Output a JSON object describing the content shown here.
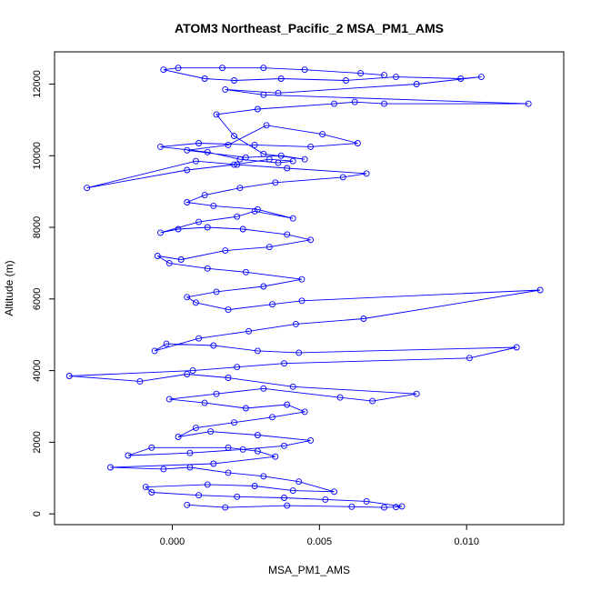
{
  "chart_data": {
    "type": "line",
    "title": "ATOM3 Northeast_Pacific_2 MSA_PM1_AMS",
    "xlabel": "MSA_PM1_AMS",
    "ylabel": "Altitude (m)",
    "xlim": [
      -0.004,
      0.0133
    ],
    "ylim": [
      -300,
      12900
    ],
    "xticks": [
      0.0,
      0.005,
      0.01
    ],
    "xtick_labels": [
      "0.000",
      "0.005",
      "0.010"
    ],
    "yticks": [
      0,
      2000,
      4000,
      6000,
      8000,
      10000,
      12000
    ],
    "ytick_labels": [
      "0",
      "2000",
      "4000",
      "6000",
      "8000",
      "10000",
      "12000"
    ],
    "grid": false,
    "colors": {
      "series": "#0000ff",
      "axis": "#000000"
    },
    "series": [
      {
        "x": [
          0.0005,
          0.0018,
          0.0039,
          0.0061,
          0.0072,
          0.0076,
          0.0078,
          0.0066,
          0.0052,
          0.0038,
          0.0022,
          0.0009,
          -0.0007,
          -0.0009,
          0.0012,
          0.0028,
          0.0041,
          0.0055,
          0.0043,
          0.0031,
          0.0019,
          0.0006,
          -0.0003,
          -0.0021,
          0.0014,
          0.0035,
          0.0029,
          0.0019,
          -0.0007,
          -0.0015,
          0.0006,
          0.0024,
          0.0038,
          0.0047,
          0.0029,
          0.0013,
          0.0002,
          0.0008,
          0.0021,
          0.0034,
          0.0045,
          0.0039,
          0.0025,
          0.0011,
          -0.0001,
          0.0015,
          0.0031,
          0.0057,
          0.0068,
          0.0083,
          0.0041,
          0.0019,
          0.0005,
          -0.0011,
          -0.0035,
          0.0007,
          0.0022,
          0.0038,
          0.0101,
          0.0117,
          0.0043,
          0.0029,
          0.0014,
          -0.0002,
          -0.0006,
          0.0009,
          0.0026,
          0.0042,
          0.0065,
          0.0125,
          0.0044,
          0.0034,
          0.0019,
          0.0008,
          0.0005,
          0.0015,
          0.0031,
          0.0044,
          0.0025,
          0.0012,
          -0.0001,
          -0.0005,
          0.0003,
          0.0018,
          0.0033,
          0.0047,
          0.0039,
          0.0024,
          0.0012,
          0.0002,
          -0.0004,
          0.0009,
          0.0022,
          0.0028,
          0.0041,
          0.0029,
          0.0014,
          0.0005,
          0.0011,
          0.0023,
          0.0035,
          0.0058,
          0.0066,
          0.0039,
          0.0022,
          0.0008,
          -0.0029,
          0.0005,
          0.0021,
          0.0033,
          0.0041,
          0.0036,
          0.0023,
          0.0012,
          -0.0004,
          0.0009,
          0.0028,
          0.0047,
          0.0063,
          0.0051,
          0.0032,
          0.0019,
          0.0005,
          0.0025,
          0.0037,
          0.0045,
          0.0031,
          0.0021,
          0.0015,
          0.0029,
          0.0055,
          0.0062,
          0.0072,
          0.0121,
          0.0031,
          0.0018,
          0.0036,
          0.0083,
          0.0105,
          0.0098,
          0.0076,
          0.0059,
          0.0037,
          0.0021,
          0.0011,
          -0.0003,
          0.0002,
          0.0017,
          0.0031,
          0.0045,
          0.0064,
          0.0072
        ],
        "y": [
          250,
          180,
          230,
          200,
          180,
          190,
          210,
          350,
          400,
          450,
          480,
          520,
          600,
          750,
          820,
          780,
          650,
          620,
          900,
          1050,
          1150,
          1300,
          1250,
          1300,
          1400,
          1600,
          1750,
          1850,
          1850,
          1630,
          1700,
          1800,
          1900,
          2050,
          2200,
          2300,
          2150,
          2400,
          2550,
          2700,
          2850,
          3050,
          2950,
          3100,
          3200,
          3350,
          3500,
          3250,
          3150,
          3350,
          3550,
          3800,
          3900,
          3700,
          3850,
          4000,
          4100,
          4200,
          4350,
          4650,
          4500,
          4550,
          4700,
          4750,
          4550,
          4900,
          5100,
          5300,
          5450,
          6250,
          5950,
          5850,
          5700,
          5900,
          6050,
          6200,
          6350,
          6550,
          6750,
          6850,
          7000,
          7200,
          7100,
          7350,
          7450,
          7650,
          7800,
          7950,
          8000,
          7950,
          7850,
          8150,
          8300,
          8450,
          8250,
          8500,
          8600,
          8700,
          8900,
          9100,
          9250,
          9400,
          9500,
          9650,
          9750,
          9850,
          9100,
          9600,
          9750,
          9900,
          9850,
          9800,
          9900,
          10100,
          10250,
          10350,
          10300,
          10250,
          10350,
          10600,
          10850,
          10300,
          10150,
          9950,
          10000,
          9900,
          10050,
          10550,
          11150,
          11300,
          11450,
          11500,
          11450,
          11450,
          11700,
          11850,
          11750,
          12000,
          12200,
          12150,
          12200,
          12100,
          12150,
          12100,
          12150,
          12400,
          12450,
          12450,
          12450,
          12400,
          12300,
          12250
        ]
      }
    ]
  }
}
